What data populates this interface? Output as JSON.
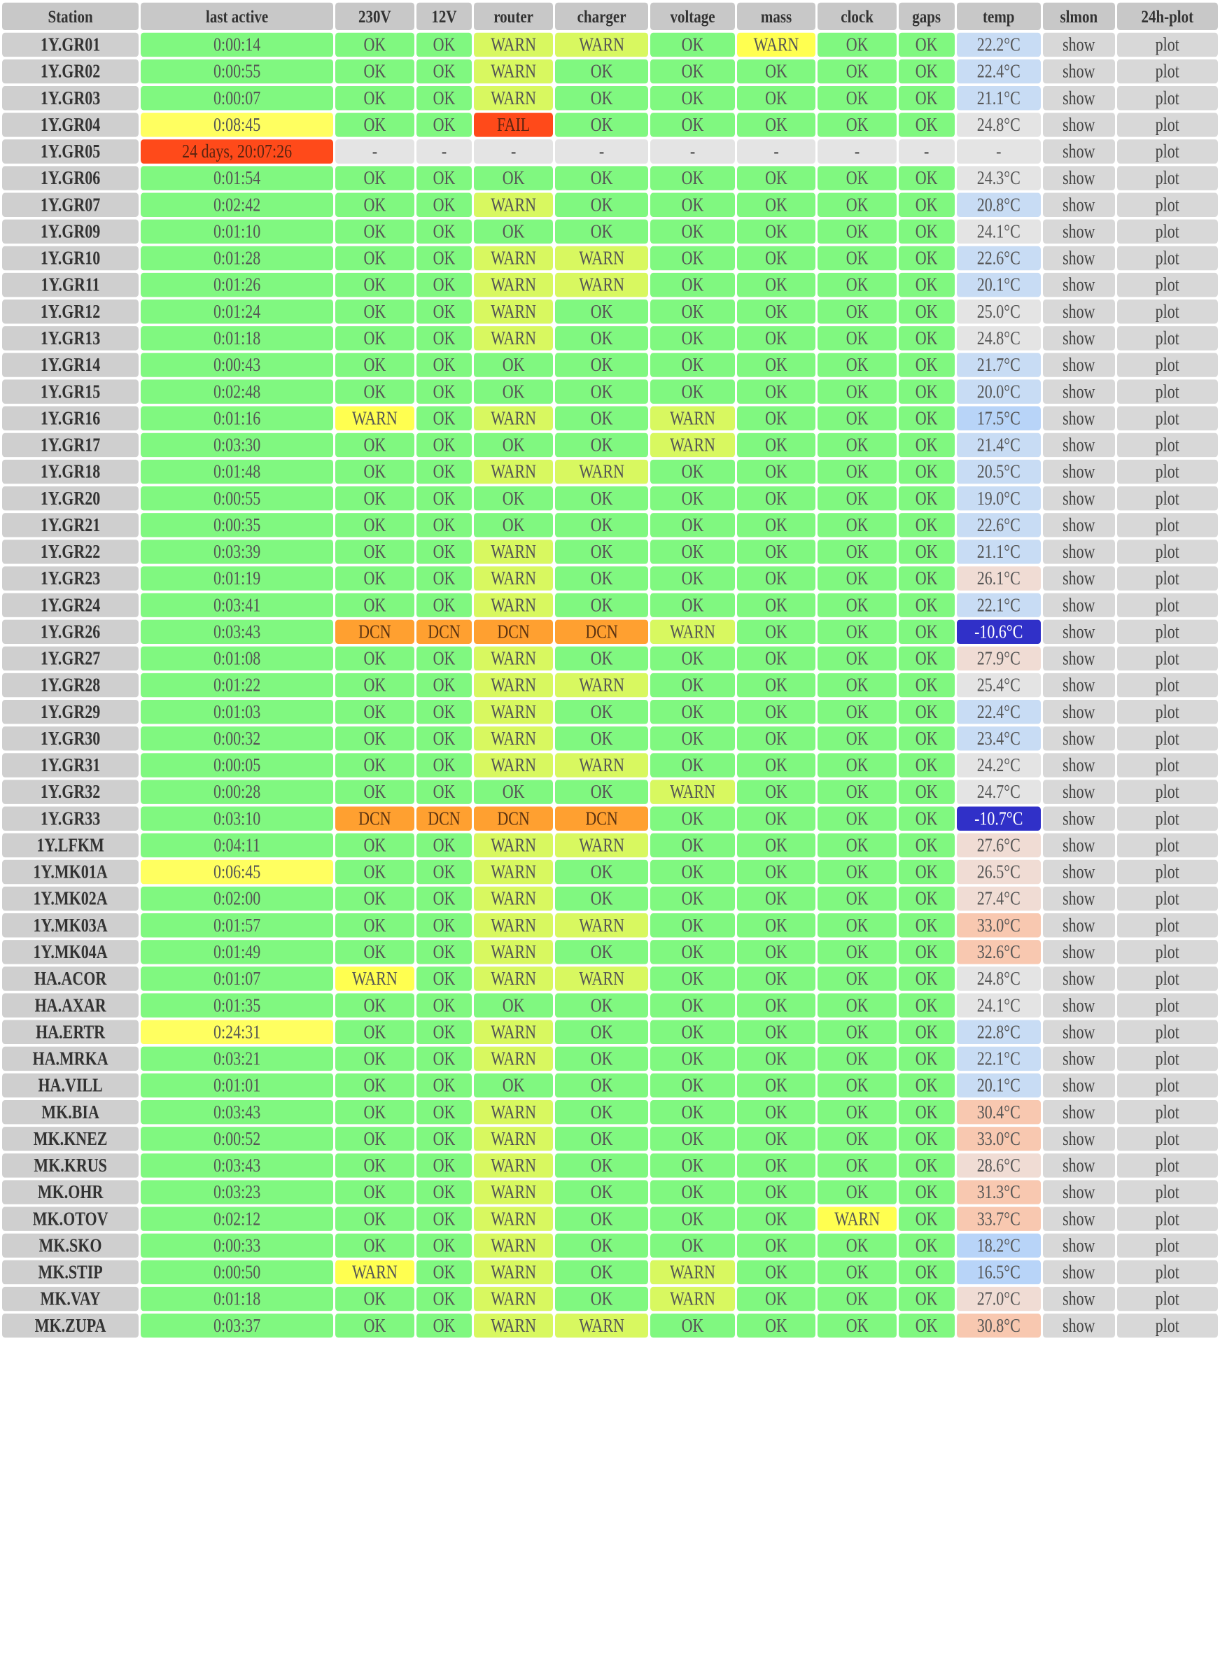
{
  "columns": [
    "Station",
    "last active",
    "230V",
    "12V",
    "router",
    "charger",
    "voltage",
    "mass",
    "clock",
    "gaps",
    "temp",
    "slmon",
    "24h-plot"
  ],
  "colors": {
    "ok": "#80f880",
    "warn": "#ffff50",
    "warn_green": "#d8f860",
    "fail": "#ff4a1a",
    "dcn": "#ffa030",
    "missing": "#e4e4e4",
    "header": "#c8c8c8",
    "temp_cold": "#3030c8",
    "temp_cool": "#c8dcf4",
    "temp_warm": "#f0dcd4",
    "temp_hot": "#f8c8b0"
  },
  "rows": [
    {
      "station": "1Y.GR01",
      "last": "0:00:14",
      "v230": "OK",
      "v12": "OK",
      "router": "WARN",
      "charger": "WARN",
      "voltage": "OK",
      "mass": "WARN",
      "clock": "OK",
      "gaps": "OK",
      "temp": "22.2°C",
      "slmon": "show",
      "plot": "plot"
    },
    {
      "station": "1Y.GR02",
      "last": "0:00:55",
      "v230": "OK",
      "v12": "OK",
      "router": "WARN",
      "charger": "OK",
      "voltage": "OK",
      "mass": "OK",
      "clock": "OK",
      "gaps": "OK",
      "temp": "22.4°C",
      "slmon": "show",
      "plot": "plot"
    },
    {
      "station": "1Y.GR03",
      "last": "0:00:07",
      "v230": "OK",
      "v12": "OK",
      "router": "WARN",
      "charger": "OK",
      "voltage": "OK",
      "mass": "OK",
      "clock": "OK",
      "gaps": "OK",
      "temp": "21.1°C",
      "slmon": "show",
      "plot": "plot"
    },
    {
      "station": "1Y.GR04",
      "last": "0:08:45",
      "v230": "OK",
      "v12": "OK",
      "router": "FAIL",
      "charger": "OK",
      "voltage": "OK",
      "mass": "OK",
      "clock": "OK",
      "gaps": "OK",
      "temp": "24.8°C",
      "slmon": "show",
      "plot": "plot"
    },
    {
      "station": "1Y.GR05",
      "last": "24 days, 20:07:26",
      "v230": "-",
      "v12": "-",
      "router": "-",
      "charger": "-",
      "voltage": "-",
      "mass": "-",
      "clock": "-",
      "gaps": "-",
      "temp": "-",
      "slmon": "show",
      "plot": "plot"
    },
    {
      "station": "1Y.GR06",
      "last": "0:01:54",
      "v230": "OK",
      "v12": "OK",
      "router": "OK",
      "charger": "OK",
      "voltage": "OK",
      "mass": "OK",
      "clock": "OK",
      "gaps": "OK",
      "temp": "24.3°C",
      "slmon": "show",
      "plot": "plot"
    },
    {
      "station": "1Y.GR07",
      "last": "0:02:42",
      "v230": "OK",
      "v12": "OK",
      "router": "WARN",
      "charger": "OK",
      "voltage": "OK",
      "mass": "OK",
      "clock": "OK",
      "gaps": "OK",
      "temp": "20.8°C",
      "slmon": "show",
      "plot": "plot"
    },
    {
      "station": "1Y.GR09",
      "last": "0:01:10",
      "v230": "OK",
      "v12": "OK",
      "router": "OK",
      "charger": "OK",
      "voltage": "OK",
      "mass": "OK",
      "clock": "OK",
      "gaps": "OK",
      "temp": "24.1°C",
      "slmon": "show",
      "plot": "plot"
    },
    {
      "station": "1Y.GR10",
      "last": "0:01:28",
      "v230": "OK",
      "v12": "OK",
      "router": "WARN",
      "charger": "WARN",
      "voltage": "OK",
      "mass": "OK",
      "clock": "OK",
      "gaps": "OK",
      "temp": "22.6°C",
      "slmon": "show",
      "plot": "plot"
    },
    {
      "station": "1Y.GR11",
      "last": "0:01:26",
      "v230": "OK",
      "v12": "OK",
      "router": "WARN",
      "charger": "WARN",
      "voltage": "OK",
      "mass": "OK",
      "clock": "OK",
      "gaps": "OK",
      "temp": "20.1°C",
      "slmon": "show",
      "plot": "plot"
    },
    {
      "station": "1Y.GR12",
      "last": "0:01:24",
      "v230": "OK",
      "v12": "OK",
      "router": "WARN",
      "charger": "OK",
      "voltage": "OK",
      "mass": "OK",
      "clock": "OK",
      "gaps": "OK",
      "temp": "25.0°C",
      "slmon": "show",
      "plot": "plot"
    },
    {
      "station": "1Y.GR13",
      "last": "0:01:18",
      "v230": "OK",
      "v12": "OK",
      "router": "WARN",
      "charger": "OK",
      "voltage": "OK",
      "mass": "OK",
      "clock": "OK",
      "gaps": "OK",
      "temp": "24.8°C",
      "slmon": "show",
      "plot": "plot"
    },
    {
      "station": "1Y.GR14",
      "last": "0:00:43",
      "v230": "OK",
      "v12": "OK",
      "router": "OK",
      "charger": "OK",
      "voltage": "OK",
      "mass": "OK",
      "clock": "OK",
      "gaps": "OK",
      "temp": "21.7°C",
      "slmon": "show",
      "plot": "plot"
    },
    {
      "station": "1Y.GR15",
      "last": "0:02:48",
      "v230": "OK",
      "v12": "OK",
      "router": "OK",
      "charger": "OK",
      "voltage": "OK",
      "mass": "OK",
      "clock": "OK",
      "gaps": "OK",
      "temp": "20.0°C",
      "slmon": "show",
      "plot": "plot"
    },
    {
      "station": "1Y.GR16",
      "last": "0:01:16",
      "v230": "WARN",
      "v12": "OK",
      "router": "WARN",
      "charger": "OK",
      "voltage": "WARN",
      "mass": "OK",
      "clock": "OK",
      "gaps": "OK",
      "temp": "17.5°C",
      "slmon": "show",
      "plot": "plot"
    },
    {
      "station": "1Y.GR17",
      "last": "0:03:30",
      "v230": "OK",
      "v12": "OK",
      "router": "OK",
      "charger": "OK",
      "voltage": "WARN",
      "mass": "OK",
      "clock": "OK",
      "gaps": "OK",
      "temp": "21.4°C",
      "slmon": "show",
      "plot": "plot"
    },
    {
      "station": "1Y.GR18",
      "last": "0:01:48",
      "v230": "OK",
      "v12": "OK",
      "router": "WARN",
      "charger": "WARN",
      "voltage": "OK",
      "mass": "OK",
      "clock": "OK",
      "gaps": "OK",
      "temp": "20.5°C",
      "slmon": "show",
      "plot": "plot"
    },
    {
      "station": "1Y.GR20",
      "last": "0:00:55",
      "v230": "OK",
      "v12": "OK",
      "router": "OK",
      "charger": "OK",
      "voltage": "OK",
      "mass": "OK",
      "clock": "OK",
      "gaps": "OK",
      "temp": "19.0°C",
      "slmon": "show",
      "plot": "plot"
    },
    {
      "station": "1Y.GR21",
      "last": "0:00:35",
      "v230": "OK",
      "v12": "OK",
      "router": "OK",
      "charger": "OK",
      "voltage": "OK",
      "mass": "OK",
      "clock": "OK",
      "gaps": "OK",
      "temp": "22.6°C",
      "slmon": "show",
      "plot": "plot"
    },
    {
      "station": "1Y.GR22",
      "last": "0:03:39",
      "v230": "OK",
      "v12": "OK",
      "router": "WARN",
      "charger": "OK",
      "voltage": "OK",
      "mass": "OK",
      "clock": "OK",
      "gaps": "OK",
      "temp": "21.1°C",
      "slmon": "show",
      "plot": "plot"
    },
    {
      "station": "1Y.GR23",
      "last": "0:01:19",
      "v230": "OK",
      "v12": "OK",
      "router": "WARN",
      "charger": "OK",
      "voltage": "OK",
      "mass": "OK",
      "clock": "OK",
      "gaps": "OK",
      "temp": "26.1°C",
      "slmon": "show",
      "plot": "plot"
    },
    {
      "station": "1Y.GR24",
      "last": "0:03:41",
      "v230": "OK",
      "v12": "OK",
      "router": "WARN",
      "charger": "OK",
      "voltage": "OK",
      "mass": "OK",
      "clock": "OK",
      "gaps": "OK",
      "temp": "22.1°C",
      "slmon": "show",
      "plot": "plot"
    },
    {
      "station": "1Y.GR26",
      "last": "0:03:43",
      "v230": "DCN",
      "v12": "DCN",
      "router": "DCN",
      "charger": "DCN",
      "voltage": "WARN",
      "mass": "OK",
      "clock": "OK",
      "gaps": "OK",
      "temp": "-10.6°C",
      "slmon": "show",
      "plot": "plot"
    },
    {
      "station": "1Y.GR27",
      "last": "0:01:08",
      "v230": "OK",
      "v12": "OK",
      "router": "WARN",
      "charger": "OK",
      "voltage": "OK",
      "mass": "OK",
      "clock": "OK",
      "gaps": "OK",
      "temp": "27.9°C",
      "slmon": "show",
      "plot": "plot"
    },
    {
      "station": "1Y.GR28",
      "last": "0:01:22",
      "v230": "OK",
      "v12": "OK",
      "router": "WARN",
      "charger": "WARN",
      "voltage": "OK",
      "mass": "OK",
      "clock": "OK",
      "gaps": "OK",
      "temp": "25.4°C",
      "slmon": "show",
      "plot": "plot"
    },
    {
      "station": "1Y.GR29",
      "last": "0:01:03",
      "v230": "OK",
      "v12": "OK",
      "router": "WARN",
      "charger": "OK",
      "voltage": "OK",
      "mass": "OK",
      "clock": "OK",
      "gaps": "OK",
      "temp": "22.4°C",
      "slmon": "show",
      "plot": "plot"
    },
    {
      "station": "1Y.GR30",
      "last": "0:00:32",
      "v230": "OK",
      "v12": "OK",
      "router": "WARN",
      "charger": "OK",
      "voltage": "OK",
      "mass": "OK",
      "clock": "OK",
      "gaps": "OK",
      "temp": "23.4°C",
      "slmon": "show",
      "plot": "plot"
    },
    {
      "station": "1Y.GR31",
      "last": "0:00:05",
      "v230": "OK",
      "v12": "OK",
      "router": "WARN",
      "charger": "WARN",
      "voltage": "OK",
      "mass": "OK",
      "clock": "OK",
      "gaps": "OK",
      "temp": "24.2°C",
      "slmon": "show",
      "plot": "plot"
    },
    {
      "station": "1Y.GR32",
      "last": "0:00:28",
      "v230": "OK",
      "v12": "OK",
      "router": "OK",
      "charger": "OK",
      "voltage": "WARN",
      "mass": "OK",
      "clock": "OK",
      "gaps": "OK",
      "temp": "24.7°C",
      "slmon": "show",
      "plot": "plot"
    },
    {
      "station": "1Y.GR33",
      "last": "0:03:10",
      "v230": "DCN",
      "v12": "DCN",
      "router": "DCN",
      "charger": "DCN",
      "voltage": "OK",
      "mass": "OK",
      "clock": "OK",
      "gaps": "OK",
      "temp": "-10.7°C",
      "slmon": "show",
      "plot": "plot"
    },
    {
      "station": "1Y.LFKM",
      "last": "0:04:11",
      "v230": "OK",
      "v12": "OK",
      "router": "WARN",
      "charger": "WARN",
      "voltage": "OK",
      "mass": "OK",
      "clock": "OK",
      "gaps": "OK",
      "temp": "27.6°C",
      "slmon": "show",
      "plot": "plot"
    },
    {
      "station": "1Y.MK01A",
      "last": "0:06:45",
      "v230": "OK",
      "v12": "OK",
      "router": "WARN",
      "charger": "OK",
      "voltage": "OK",
      "mass": "OK",
      "clock": "OK",
      "gaps": "OK",
      "temp": "26.5°C",
      "slmon": "show",
      "plot": "plot"
    },
    {
      "station": "1Y.MK02A",
      "last": "0:02:00",
      "v230": "OK",
      "v12": "OK",
      "router": "WARN",
      "charger": "OK",
      "voltage": "OK",
      "mass": "OK",
      "clock": "OK",
      "gaps": "OK",
      "temp": "27.4°C",
      "slmon": "show",
      "plot": "plot"
    },
    {
      "station": "1Y.MK03A",
      "last": "0:01:57",
      "v230": "OK",
      "v12": "OK",
      "router": "WARN",
      "charger": "WARN",
      "voltage": "OK",
      "mass": "OK",
      "clock": "OK",
      "gaps": "OK",
      "temp": "33.0°C",
      "slmon": "show",
      "plot": "plot"
    },
    {
      "station": "1Y.MK04A",
      "last": "0:01:49",
      "v230": "OK",
      "v12": "OK",
      "router": "WARN",
      "charger": "OK",
      "voltage": "OK",
      "mass": "OK",
      "clock": "OK",
      "gaps": "OK",
      "temp": "32.6°C",
      "slmon": "show",
      "plot": "plot"
    },
    {
      "station": "HA.ACOR",
      "last": "0:01:07",
      "v230": "WARN",
      "v12": "OK",
      "router": "WARN",
      "charger": "WARN",
      "voltage": "OK",
      "mass": "OK",
      "clock": "OK",
      "gaps": "OK",
      "temp": "24.8°C",
      "slmon": "show",
      "plot": "plot"
    },
    {
      "station": "HA.AXAR",
      "last": "0:01:35",
      "v230": "OK",
      "v12": "OK",
      "router": "OK",
      "charger": "OK",
      "voltage": "OK",
      "mass": "OK",
      "clock": "OK",
      "gaps": "OK",
      "temp": "24.1°C",
      "slmon": "show",
      "plot": "plot"
    },
    {
      "station": "HA.ERTR",
      "last": "0:24:31",
      "v230": "OK",
      "v12": "OK",
      "router": "WARN",
      "charger": "OK",
      "voltage": "OK",
      "mass": "OK",
      "clock": "OK",
      "gaps": "OK",
      "temp": "22.8°C",
      "slmon": "show",
      "plot": "plot"
    },
    {
      "station": "HA.MRKA",
      "last": "0:03:21",
      "v230": "OK",
      "v12": "OK",
      "router": "WARN",
      "charger": "OK",
      "voltage": "OK",
      "mass": "OK",
      "clock": "OK",
      "gaps": "OK",
      "temp": "22.1°C",
      "slmon": "show",
      "plot": "plot"
    },
    {
      "station": "HA.VILL",
      "last": "0:01:01",
      "v230": "OK",
      "v12": "OK",
      "router": "OK",
      "charger": "OK",
      "voltage": "OK",
      "mass": "OK",
      "clock": "OK",
      "gaps": "OK",
      "temp": "20.1°C",
      "slmon": "show",
      "plot": "plot"
    },
    {
      "station": "MK.BIA",
      "last": "0:03:43",
      "v230": "OK",
      "v12": "OK",
      "router": "WARN",
      "charger": "OK",
      "voltage": "OK",
      "mass": "OK",
      "clock": "OK",
      "gaps": "OK",
      "temp": "30.4°C",
      "slmon": "show",
      "plot": "plot"
    },
    {
      "station": "MK.KNEZ",
      "last": "0:00:52",
      "v230": "OK",
      "v12": "OK",
      "router": "WARN",
      "charger": "OK",
      "voltage": "OK",
      "mass": "OK",
      "clock": "OK",
      "gaps": "OK",
      "temp": "33.0°C",
      "slmon": "show",
      "plot": "plot"
    },
    {
      "station": "MK.KRUS",
      "last": "0:03:43",
      "v230": "OK",
      "v12": "OK",
      "router": "WARN",
      "charger": "OK",
      "voltage": "OK",
      "mass": "OK",
      "clock": "OK",
      "gaps": "OK",
      "temp": "28.6°C",
      "slmon": "show",
      "plot": "plot"
    },
    {
      "station": "MK.OHR",
      "last": "0:03:23",
      "v230": "OK",
      "v12": "OK",
      "router": "WARN",
      "charger": "OK",
      "voltage": "OK",
      "mass": "OK",
      "clock": "OK",
      "gaps": "OK",
      "temp": "31.3°C",
      "slmon": "show",
      "plot": "plot"
    },
    {
      "station": "MK.OTOV",
      "last": "0:02:12",
      "v230": "OK",
      "v12": "OK",
      "router": "WARN",
      "charger": "OK",
      "voltage": "OK",
      "mass": "OK",
      "clock": "WARN",
      "gaps": "OK",
      "temp": "33.7°C",
      "slmon": "show",
      "plot": "plot"
    },
    {
      "station": "MK.SKO",
      "last": "0:00:33",
      "v230": "OK",
      "v12": "OK",
      "router": "WARN",
      "charger": "OK",
      "voltage": "OK",
      "mass": "OK",
      "clock": "OK",
      "gaps": "OK",
      "temp": "18.2°C",
      "slmon": "show",
      "plot": "plot"
    },
    {
      "station": "MK.STIP",
      "last": "0:00:50",
      "v230": "WARN",
      "v12": "OK",
      "router": "WARN",
      "charger": "OK",
      "voltage": "WARN",
      "mass": "OK",
      "clock": "OK",
      "gaps": "OK",
      "temp": "16.5°C",
      "slmon": "show",
      "plot": "plot"
    },
    {
      "station": "MK.VAY",
      "last": "0:01:18",
      "v230": "OK",
      "v12": "OK",
      "router": "WARN",
      "charger": "OK",
      "voltage": "WARN",
      "mass": "OK",
      "clock": "OK",
      "gaps": "OK",
      "temp": "27.0°C",
      "slmon": "show",
      "plot": "plot"
    },
    {
      "station": "MK.ZUPA",
      "last": "0:03:37",
      "v230": "OK",
      "v12": "OK",
      "router": "WARN",
      "charger": "WARN",
      "voltage": "OK",
      "mass": "OK",
      "clock": "OK",
      "gaps": "OK",
      "temp": "30.8°C",
      "slmon": "show",
      "plot": "plot"
    }
  ]
}
